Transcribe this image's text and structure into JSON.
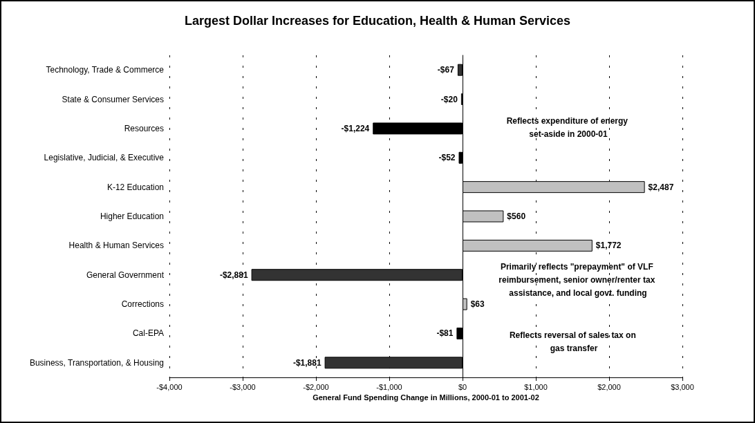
{
  "chart_data": {
    "type": "bar",
    "orientation": "horizontal",
    "title": "Largest Dollar Increases for Education, Health & Human Services",
    "xlabel": "General Fund Spending Change in Millions, 2000-01 to 2001-02",
    "categories": [
      "Technology, Trade & Commerce",
      "State & Consumer Services",
      "Resources",
      "Legislative, Judicial, & Executive",
      "K-12 Education",
      "Higher Education",
      "Health & Human Services",
      "General Government",
      "Corrections",
      "Cal-EPA",
      "Business, Transportation, & Housing"
    ],
    "values": [
      -67,
      -20,
      -1224,
      -52,
      2487,
      560,
      1772,
      -2881,
      63,
      -81,
      -1881
    ],
    "value_labels": [
      "-$67",
      "-$20",
      "-$1,224",
      "-$52",
      "$2,487",
      "$560",
      "$1,772",
      "-$2,881",
      "$63",
      "-$81",
      "-$1,881"
    ],
    "colors": [
      "#333333",
      "#ffffff",
      "#000000",
      "#000000",
      "#c0c0c0",
      "#c0c0c0",
      "#c0c0c0",
      "#333333",
      "#c0c0c0",
      "#000000",
      "#333333"
    ],
    "xlim": [
      -4000,
      3000
    ],
    "xticks": [
      {
        "value": -4000,
        "label": "-$4,000"
      },
      {
        "value": -3000,
        "label": "-$3,000"
      },
      {
        "value": -2000,
        "label": "-$2,000"
      },
      {
        "value": -1000,
        "label": "-$1,000"
      },
      {
        "value": 0,
        "label": "$0"
      },
      {
        "value": 1000,
        "label": "$1,000"
      },
      {
        "value": 2000,
        "label": "$2,000"
      },
      {
        "value": 3000,
        "label": "$3,000"
      }
    ],
    "grid": "x",
    "annotations": [
      "Reflects expenditure of energy set-aside in 2000-01",
      "Primarily reflects \"prepayment\" of VLF reimbursement, senior owner/renter tax assistance, and local govt. funding",
      "Reflects reversal of sales tax on gas transfer"
    ]
  }
}
